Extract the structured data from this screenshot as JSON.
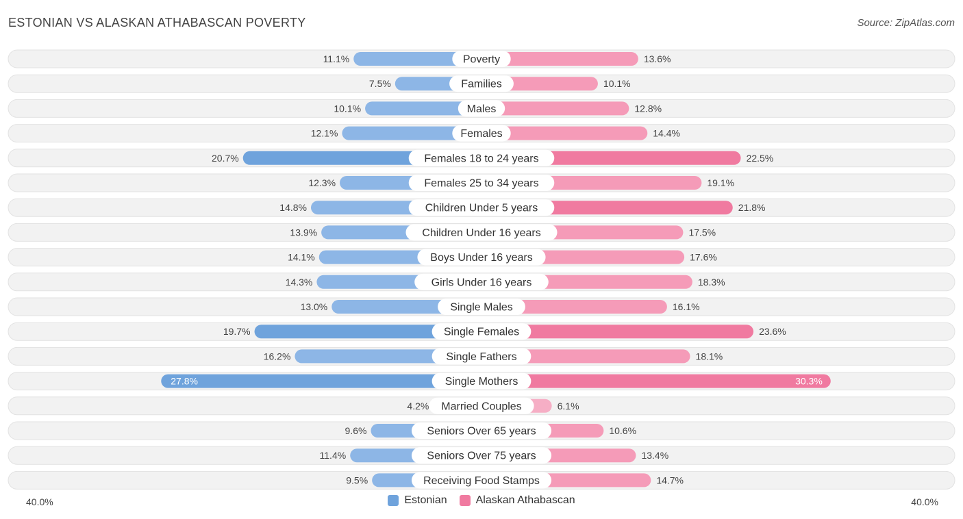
{
  "header": {
    "title": "ESTONIAN VS ALASKAN ATHABASCAN POVERTY",
    "source": "Source: ZipAtlas.com"
  },
  "axis": {
    "left_label": "40.0%",
    "right_label": "40.0%"
  },
  "legend": {
    "estonian": "Estonian",
    "alaskan": "Alaskan Athabascan"
  },
  "colors": {
    "estonian": "#6fa3dc",
    "estonian_light": "#aac8ec",
    "alaskan": "#f07aa0",
    "alaskan_light": "#f6aec5",
    "row_bg": "#f0f0f0"
  },
  "chart_data": {
    "type": "bar",
    "orientation": "horizontal-diverging",
    "title": "ESTONIAN VS ALASKAN ATHABASCAN POVERTY",
    "xlim": [
      -40,
      40
    ],
    "categories": [
      "Poverty",
      "Families",
      "Males",
      "Females",
      "Females 18 to 24 years",
      "Females 25 to 34 years",
      "Children Under 5 years",
      "Children Under 16 years",
      "Boys Under 16 years",
      "Girls Under 16 years",
      "Single Males",
      "Single Females",
      "Single Fathers",
      "Single Mothers",
      "Married Couples",
      "Seniors Over 65 years",
      "Seniors Over 75 years",
      "Receiving Food Stamps"
    ],
    "series": [
      {
        "name": "Estonian",
        "values": [
          11.1,
          7.5,
          10.1,
          12.1,
          20.7,
          12.3,
          14.8,
          13.9,
          14.1,
          14.3,
          13.0,
          19.7,
          16.2,
          27.8,
          4.2,
          9.6,
          11.4,
          9.5
        ],
        "labels": [
          "11.1%",
          "7.5%",
          "10.1%",
          "12.1%",
          "20.7%",
          "12.3%",
          "14.8%",
          "13.9%",
          "14.1%",
          "14.3%",
          "13.0%",
          "19.7%",
          "16.2%",
          "27.8%",
          "4.2%",
          "9.6%",
          "11.4%",
          "9.5%"
        ]
      },
      {
        "name": "Alaskan Athabascan",
        "values": [
          13.6,
          10.1,
          12.8,
          14.4,
          22.5,
          19.1,
          21.8,
          17.5,
          17.6,
          18.3,
          16.1,
          23.6,
          18.1,
          30.3,
          6.1,
          10.6,
          13.4,
          14.7
        ],
        "labels": [
          "13.6%",
          "10.1%",
          "12.8%",
          "14.4%",
          "22.5%",
          "19.1%",
          "21.8%",
          "17.5%",
          "17.6%",
          "18.3%",
          "16.1%",
          "23.6%",
          "18.1%",
          "30.3%",
          "6.1%",
          "10.6%",
          "13.4%",
          "14.7%"
        ]
      }
    ]
  }
}
